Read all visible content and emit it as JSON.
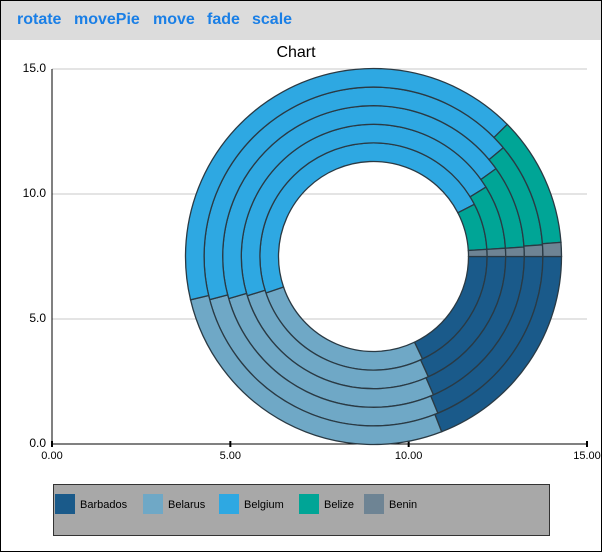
{
  "toolbar": [
    "rotate",
    "movePie",
    "move",
    "fade",
    "scale"
  ],
  "chart_data": {
    "type": "donut",
    "title": "Chart",
    "categories": [
      "Barbados",
      "Belarus",
      "Belgium",
      "Belize",
      "Benin"
    ],
    "colors": [
      "#1a5a8a",
      "#6fa8c6",
      "#2ea8e2",
      "#00a596",
      "#6e8494"
    ],
    "series": [
      {
        "values": [
          17.9,
          26.9,
          47.6,
          6.6,
          1.0
        ]
      },
      {
        "values": [
          18.2,
          27.0,
          46.0,
          7.8,
          1.0
        ]
      },
      {
        "values": [
          18.5,
          27.0,
          44.6,
          8.9,
          1.0
        ]
      },
      {
        "values": [
          18.8,
          27.1,
          43.0,
          10.0,
          1.1
        ]
      },
      {
        "values": [
          19.1,
          27.2,
          41.3,
          11.2,
          1.2
        ]
      }
    ],
    "xlim": [
      0,
      15
    ],
    "ylim": [
      0,
      15
    ],
    "xticks": [
      {
        "value": 0,
        "label": "0.00"
      },
      {
        "value": 5,
        "label": "5.00"
      },
      {
        "value": 10,
        "label": "10.00"
      },
      {
        "value": 15,
        "label": "15.00"
      }
    ],
    "yticks": [
      {
        "value": 0,
        "label": "0.0"
      },
      {
        "value": 5,
        "label": "5.0"
      },
      {
        "value": 10,
        "label": "10.0"
      },
      {
        "value": 15,
        "label": "15.0"
      }
    ],
    "grid": true
  }
}
